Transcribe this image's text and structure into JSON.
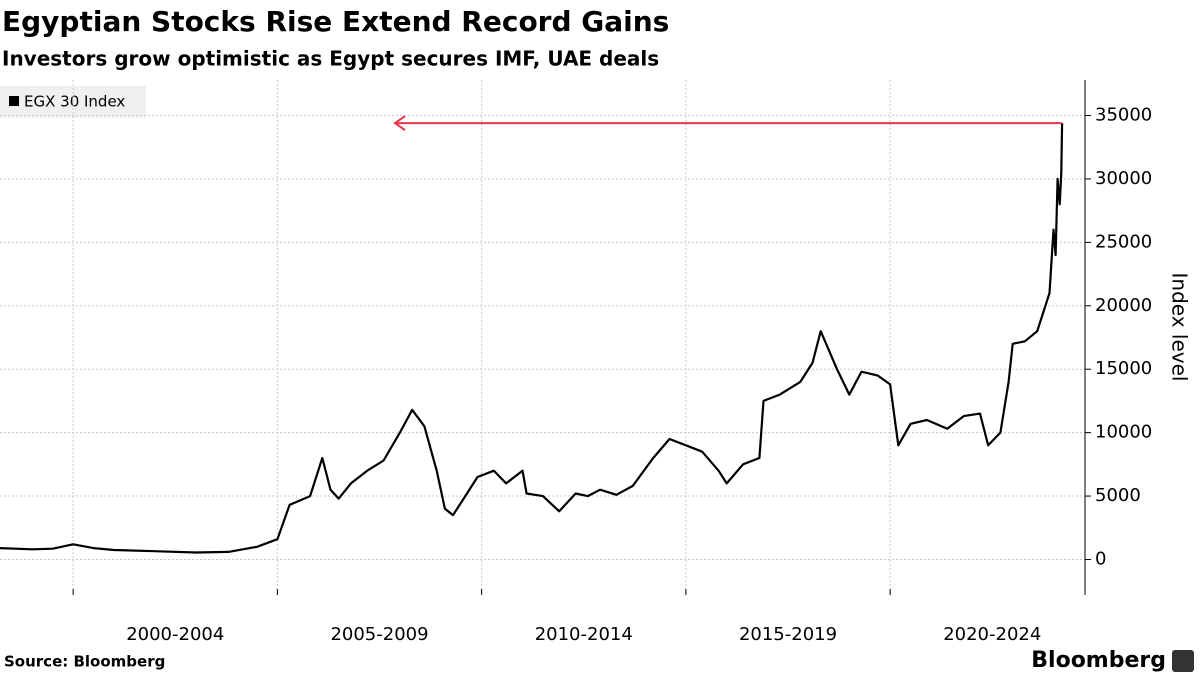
{
  "chart_data": {
    "type": "line",
    "title": "Egyptian Stocks Rise Extend Record Gains",
    "subtitle": "Investors grow optimistic as Egypt secures IMF, UAE deals",
    "y_axis_label": "Index level",
    "source": "Source: Bloomberg",
    "brand": "Bloomberg",
    "legend_position": "upper left",
    "grid": true,
    "xlim": [
      1998.21,
      2024.77
    ],
    "xgrid": [
      2000,
      2005,
      2010,
      2015,
      2020
    ],
    "xticks": [
      {
        "value": 2002.5,
        "label": "2000-2004"
      },
      {
        "value": 2007.5,
        "label": "2005-2009"
      },
      {
        "value": 2012.5,
        "label": "2010-2014"
      },
      {
        "value": 2017.5,
        "label": "2015-2019"
      },
      {
        "value": 2022.5,
        "label": "2020-2024"
      }
    ],
    "ylim": [
      -2800,
      37800
    ],
    "yticks": [
      0,
      5000,
      10000,
      15000,
      20000,
      25000,
      30000,
      35000
    ],
    "x": [
      1998.21,
      1999,
      1999.5,
      2000,
      2000.5,
      2001,
      2002,
      2003,
      2003.8,
      2004.5,
      2005,
      2005.3,
      2005.8,
      2006.1,
      2006.3,
      2006.5,
      2006.8,
      2007.2,
      2007.6,
      2008.0,
      2008.3,
      2008.6,
      2008.9,
      2009.1,
      2009.3,
      2009.6,
      2009.9,
      2010.3,
      2010.6,
      2011.0,
      2011.1,
      2011.5,
      2011.9,
      2012.3,
      2012.6,
      2012.9,
      2013.3,
      2013.7,
      2014.2,
      2014.6,
      2015.0,
      2015.4,
      2015.8,
      2016.0,
      2016.4,
      2016.8,
      2016.9,
      2017.3,
      2017.8,
      2018.1,
      2018.3,
      2018.7,
      2019.0,
      2019.3,
      2019.7,
      2020.0,
      2020.2,
      2020.5,
      2020.9,
      2021.4,
      2021.8,
      2022.2,
      2022.4,
      2022.7,
      2022.9,
      2023.0,
      2023.3,
      2023.6,
      2023.9,
      2024.0,
      2024.05,
      2024.1,
      2024.15,
      2024.19,
      2024.21
    ],
    "series": [
      {
        "name": "EGX 30 Index",
        "color": "#000000",
        "values": [
          900,
          800,
          850,
          1200,
          900,
          750,
          650,
          550,
          600,
          1000,
          1600,
          4300,
          5000,
          8000,
          5500,
          4800,
          6000,
          7000,
          7800,
          10000,
          11800,
          10500,
          7000,
          4000,
          3500,
          5000,
          6500,
          7000,
          6000,
          7000,
          5200,
          5000,
          3800,
          5200,
          5000,
          5500,
          5100,
          5800,
          8000,
          9500,
          9000,
          8500,
          7000,
          6000,
          7500,
          8000,
          12500,
          13000,
          14000,
          15500,
          18000,
          15000,
          13000,
          14800,
          14500,
          13800,
          9000,
          10700,
          11000,
          10300,
          11300,
          11500,
          9000,
          10000,
          14000,
          17000,
          17200,
          18000,
          21000,
          26000,
          24000,
          30000,
          28000,
          30500,
          34400
        ]
      }
    ]
  }
}
